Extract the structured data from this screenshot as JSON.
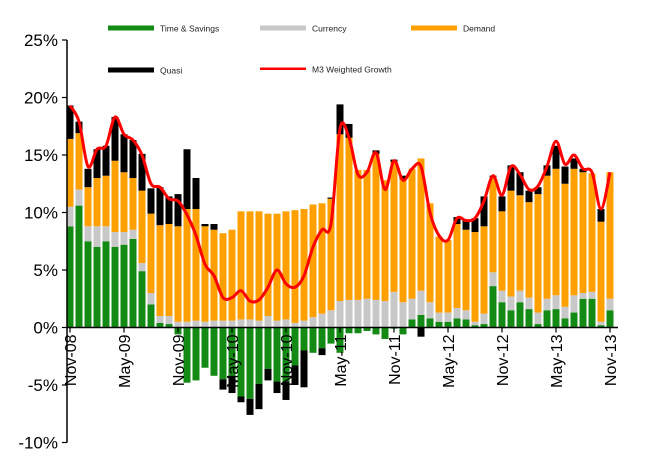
{
  "chart_data": {
    "type": "bar",
    "stacked": true,
    "title": "",
    "xlabel": "",
    "ylabel": "",
    "ylim": [
      -10,
      25
    ],
    "yticks": [
      "-10%",
      "-5%",
      "0%",
      "5%",
      "10%",
      "15%",
      "20%",
      "25%"
    ],
    "ytick_values": [
      -10,
      -5,
      0,
      5,
      10,
      15,
      20,
      25
    ],
    "xticks": [
      "Nov-08",
      "May-09",
      "Nov-09",
      "May-10",
      "Nov-10",
      "May-11",
      "Nov-11",
      "May-12",
      "Nov-12",
      "May-13",
      "Nov-13"
    ],
    "xtick_every_months": 6,
    "legend_position": "top",
    "grid": false,
    "series": [
      {
        "name": "Time & Savings",
        "color": "#138a13",
        "kind": "bar",
        "values": [
          8.8,
          10.6,
          7.5,
          7.0,
          7.5,
          7.0,
          7.2,
          7.7,
          4.9,
          2.0,
          0.4,
          0.3,
          -0.6,
          -4.8,
          -4.6,
          -3.5,
          -4.2,
          -4.5,
          -4.2,
          -6.0,
          -6.2,
          -4.9,
          -3.6,
          -4.7,
          -4.7,
          -3.3,
          -2.0,
          -2.2,
          -1.8,
          -1.4,
          -2.2,
          -0.5,
          -0.5,
          -0.3,
          -0.6,
          -1.0,
          -0.1,
          -0.6,
          0.7,
          1.1,
          0.8,
          0.5,
          0.5,
          0.8,
          0.7,
          0.2,
          0.3,
          3.6,
          2.2,
          1.5,
          2.2,
          1.6,
          0.3,
          1.5,
          1.6,
          0.8,
          1.3,
          2.5,
          2.5,
          0.2,
          1.5
        ]
      },
      {
        "name": "Currency",
        "color": "#c8c8c8",
        "kind": "bar",
        "values": [
          1.7,
          1.4,
          1.3,
          1.8,
          1.3,
          1.3,
          1.1,
          0.8,
          0.7,
          1.0,
          0.6,
          0.7,
          0.5,
          0.5,
          0.6,
          0.5,
          0.6,
          0.6,
          0.6,
          0.7,
          0.7,
          0.6,
          1.0,
          0.6,
          0.7,
          0.4,
          0.6,
          0.9,
          1.2,
          1.5,
          2.3,
          2.4,
          2.4,
          2.5,
          2.4,
          2.3,
          3.1,
          2.2,
          1.8,
          2.1,
          1.4,
          0.8,
          0.8,
          0.9,
          0.8,
          0.3,
          0.9,
          1.2,
          1.0,
          1.2,
          1.0,
          1.0,
          1.0,
          1.0,
          1.2,
          1.0,
          1.5,
          0.5,
          0.6,
          0.3,
          1.0
        ]
      },
      {
        "name": "Demand",
        "color": "#ffa000",
        "kind": "bar",
        "values": [
          5.9,
          4.9,
          3.4,
          4.2,
          4.4,
          6.2,
          5.2,
          4.5,
          6.3,
          6.9,
          7.9,
          8.0,
          8.3,
          9.8,
          9.7,
          8.3,
          7.9,
          7.6,
          7.9,
          9.4,
          9.4,
          9.5,
          8.9,
          9.3,
          9.4,
          9.8,
          9.7,
          9.8,
          9.6,
          9.7,
          14.5,
          14.1,
          11.3,
          11.2,
          12.7,
          10.5,
          11.3,
          10.7,
          11.3,
          11.5,
          8.6,
          6.6,
          6.3,
          7.3,
          7.0,
          7.8,
          7.6,
          8.3,
          6.9,
          9.2,
          8.3,
          8.3,
          10.3,
          10.7,
          11.0,
          10.7,
          11.0,
          10.5,
          10.3,
          8.7,
          11.0
        ]
      },
      {
        "name": "Quasi",
        "color": "#000000",
        "kind": "bar",
        "values": [
          2.9,
          1.0,
          1.6,
          2.5,
          2.6,
          3.8,
          3.3,
          3.3,
          3.2,
          2.2,
          3.3,
          2.4,
          2.8,
          5.2,
          2.7,
          0.2,
          0.5,
          -0.9,
          -1.5,
          -0.5,
          -1.4,
          -2.2,
          -1.0,
          -1.0,
          -1.6,
          -1.7,
          -3.2,
          0,
          -0.6,
          0.1,
          2.6,
          1.2,
          0,
          0,
          0.3,
          0,
          0.2,
          0.3,
          0,
          -0.8,
          0,
          0,
          0,
          0.6,
          0.8,
          1.2,
          2.6,
          0.1,
          1.3,
          2.2,
          2.0,
          1.0,
          0.6,
          0.9,
          2.0,
          1.5,
          0.9,
          0.3,
          0,
          1.1,
          0
        ]
      },
      {
        "name": "M3 Weighted Growth",
        "color": "#ff0000",
        "kind": "line",
        "values": [
          19.3,
          17.9,
          14.0,
          15.5,
          15.8,
          18.3,
          16.8,
          16.3,
          15.0,
          12.5,
          12.2,
          11.2,
          11.0,
          9.8,
          8.0,
          5.5,
          4.5,
          2.6,
          2.6,
          3.2,
          2.3,
          2.4,
          3.5,
          5.0,
          3.8,
          3.5,
          4.5,
          7.0,
          8.5,
          9.0,
          17.3,
          16.5,
          13.3,
          13.5,
          15.2,
          12.0,
          14.5,
          12.8,
          13.8,
          14.0,
          10.0,
          8.0,
          7.6,
          9.5,
          9.3,
          9.5,
          11.0,
          13.2,
          11.5,
          14.0,
          13.3,
          12.0,
          12.3,
          14.0,
          16.2,
          14.2,
          15.0,
          13.8,
          13.5,
          10.3,
          13.5
        ]
      }
    ]
  }
}
